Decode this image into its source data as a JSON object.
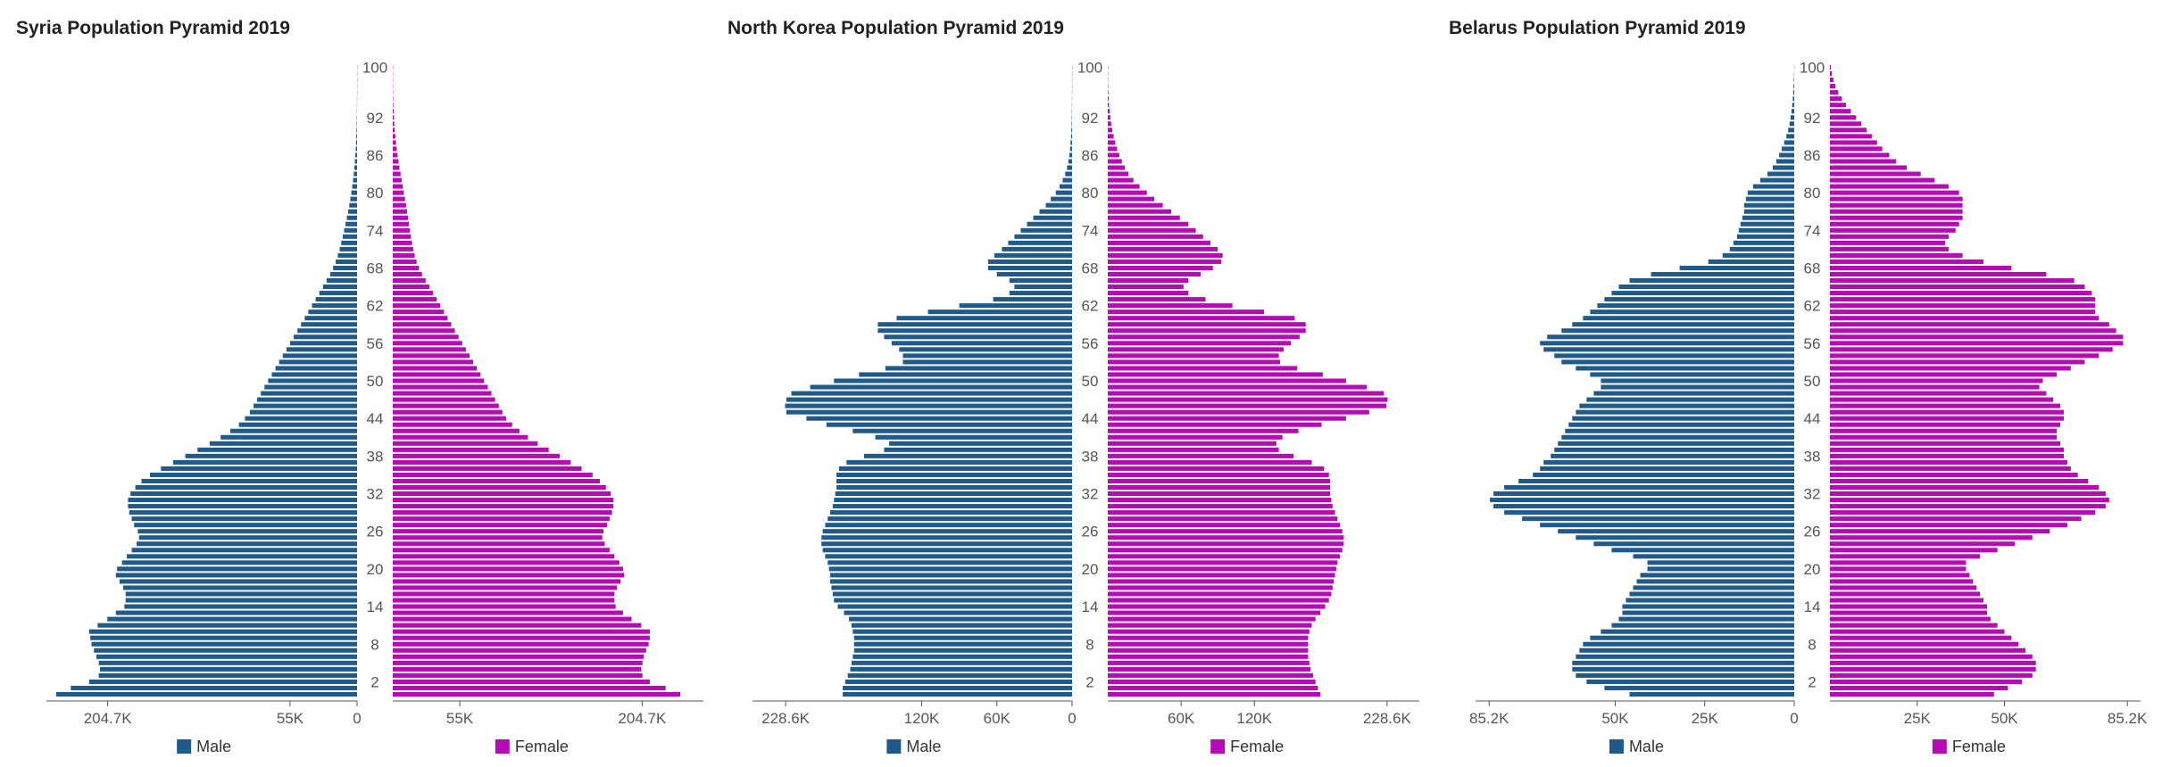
{
  "colors": {
    "male": "#1f5a8b",
    "female": "#b40bb4"
  },
  "chart_data": [
    {
      "type": "bar",
      "title": "Syria Population Pyramid 2019",
      "legend": {
        "male": "Male",
        "female": "Female",
        "placement": "bottom"
      },
      "age_ticks": [
        "2",
        "8",
        "14",
        "20",
        "26",
        "32",
        "38",
        "44",
        "50",
        "56",
        "62",
        "68",
        "74",
        "80",
        "86",
        "92",
        "100"
      ],
      "x_tick_labels": {
        "male": [
          "204.7K",
          "55K",
          "0"
        ],
        "female": [
          "55K",
          "204.7K"
        ]
      },
      "x_tick_values": {
        "male": [
          204700,
          55000,
          0
        ],
        "female": [
          55000,
          204700
        ]
      },
      "xlim": [
        0,
        255000
      ],
      "male": [
        247000,
        235000,
        220000,
        212000,
        211000,
        212000,
        214000,
        216000,
        218000,
        219000,
        220000,
        213000,
        205000,
        198000,
        191000,
        190000,
        190000,
        192000,
        195000,
        198000,
        197000,
        193000,
        189000,
        185000,
        181000,
        179000,
        180000,
        183000,
        185000,
        187000,
        188000,
        188000,
        186000,
        182000,
        177000,
        170000,
        161000,
        151000,
        141000,
        131000,
        121000,
        112000,
        104000,
        97000,
        92000,
        88000,
        85000,
        82000,
        79000,
        76000,
        73000,
        70000,
        67000,
        64000,
        61000,
        58000,
        55000,
        52000,
        49000,
        46000,
        43000,
        40000,
        37000,
        34000,
        31000,
        28000,
        25000,
        22000,
        19700,
        17500,
        15800,
        14300,
        13000,
        11800,
        10600,
        9500,
        8400,
        7400,
        6400,
        5500,
        4700,
        4000,
        3300,
        2700,
        2200,
        1800,
        1400,
        1100,
        850,
        650,
        500,
        380,
        280,
        200,
        140,
        100,
        70,
        45,
        30,
        20,
        10
      ],
      "female": [
        236000,
        224000,
        211000,
        205000,
        204000,
        205000,
        206000,
        208000,
        210000,
        211000,
        211000,
        204000,
        196000,
        189000,
        183000,
        182000,
        182000,
        184000,
        187000,
        190000,
        189000,
        186000,
        182000,
        178000,
        174000,
        172000,
        173000,
        176000,
        178000,
        180000,
        181000,
        181000,
        179000,
        175000,
        170000,
        164000,
        155000,
        146000,
        137000,
        128000,
        119000,
        111000,
        104000,
        98000,
        93000,
        90000,
        87000,
        84000,
        81000,
        78000,
        75000,
        72000,
        69000,
        66000,
        63000,
        60000,
        57000,
        54000,
        51000,
        48000,
        45000,
        42000,
        39000,
        36000,
        33000,
        30000,
        27000,
        24000,
        21500,
        19500,
        18000,
        16800,
        15800,
        14900,
        14100,
        13300,
        12500,
        11700,
        10900,
        10000,
        9100,
        8200,
        7300,
        6400,
        5500,
        4700,
        3900,
        3200,
        2600,
        2100,
        1600,
        1250,
        950,
        700,
        500,
        350,
        240,
        160,
        100,
        60,
        30
      ]
    },
    {
      "type": "bar",
      "title": "North Korea Population Pyramid 2019",
      "legend": {
        "male": "Male",
        "female": "Female",
        "placement": "bottom"
      },
      "age_ticks": [
        "2",
        "8",
        "14",
        "20",
        "26",
        "32",
        "38",
        "44",
        "50",
        "56",
        "62",
        "68",
        "74",
        "80",
        "86",
        "92",
        "100"
      ],
      "x_tick_labels": {
        "male": [
          "228.6K",
          "120K",
          "60K",
          "0"
        ],
        "female": [
          "60K",
          "120K",
          "228.6K"
        ]
      },
      "x_tick_values": {
        "male": [
          228600,
          120000,
          60000,
          0
        ],
        "female": [
          60000,
          120000,
          228600
        ]
      },
      "xlim": [
        0,
        255000
      ],
      "male": [
        183000,
        183000,
        181000,
        179000,
        177000,
        176000,
        175000,
        174000,
        174000,
        174000,
        175000,
        176000,
        178000,
        182000,
        187000,
        190000,
        191000,
        192000,
        193000,
        193000,
        194000,
        195000,
        197000,
        199000,
        200000,
        200000,
        199000,
        197000,
        195000,
        193000,
        191000,
        190000,
        189000,
        188000,
        188000,
        188000,
        186000,
        180000,
        166000,
        150000,
        146000,
        157000,
        175000,
        196000,
        212000,
        228000,
        229000,
        228000,
        224000,
        209000,
        190000,
        170000,
        149000,
        135000,
        135000,
        138000,
        144000,
        150000,
        155000,
        155000,
        140000,
        115000,
        90000,
        63000,
        50000,
        46000,
        50000,
        60000,
        67000,
        67000,
        62000,
        56000,
        51000,
        46000,
        41000,
        36000,
        31000,
        26000,
        21000,
        17000,
        13000,
        10000,
        7500,
        5500,
        4000,
        3000,
        2200,
        1600,
        1200,
        850,
        600,
        420,
        300,
        200,
        140,
        100,
        70,
        45,
        30,
        20,
        10
      ],
      "female": [
        174000,
        172000,
        170000,
        168000,
        166000,
        165000,
        164000,
        164000,
        164000,
        164000,
        165000,
        167000,
        170000,
        174000,
        178000,
        181000,
        183000,
        184000,
        185000,
        186000,
        187000,
        188000,
        190000,
        192000,
        193000,
        193000,
        192000,
        190000,
        188000,
        186000,
        184000,
        183000,
        182000,
        182000,
        182000,
        181000,
        177000,
        167000,
        152000,
        140000,
        138000,
        143000,
        156000,
        175000,
        195000,
        214000,
        228000,
        229000,
        226000,
        212000,
        195000,
        176000,
        155000,
        141000,
        140000,
        144000,
        150000,
        157000,
        162000,
        162000,
        153000,
        128000,
        102000,
        80000,
        66000,
        62000,
        66000,
        76000,
        86000,
        93000,
        94000,
        90000,
        84000,
        78000,
        72000,
        66000,
        59000,
        52000,
        45000,
        38000,
        32000,
        26000,
        21000,
        17000,
        14000,
        11500,
        9400,
        7600,
        6100,
        4800,
        3700,
        2800,
        2100,
        1500,
        1000,
        700,
        450,
        280,
        160,
        90,
        40
      ]
    },
    {
      "type": "bar",
      "title": "Belarus Population Pyramid 2019",
      "legend": {
        "male": "Male",
        "female": "Female",
        "placement": "bottom"
      },
      "age_ticks": [
        "2",
        "8",
        "14",
        "20",
        "26",
        "32",
        "38",
        "44",
        "50",
        "56",
        "62",
        "68",
        "74",
        "80",
        "86",
        "92",
        "100"
      ],
      "x_tick_labels": {
        "male": [
          "85.2K",
          "50K",
          "25K",
          "0"
        ],
        "female": [
          "25K",
          "50K",
          "85.2K"
        ]
      },
      "x_tick_values": {
        "male": [
          85200,
          50000,
          25000,
          0
        ],
        "female": [
          25000,
          50000,
          85200
        ]
      },
      "xlim": [
        0,
        89000
      ],
      "male": [
        46000,
        53000,
        58000,
        61000,
        62000,
        62000,
        61000,
        60000,
        59000,
        57000,
        54000,
        51000,
        49000,
        48000,
        48000,
        47000,
        46000,
        45000,
        44000,
        43000,
        41000,
        41000,
        45000,
        51000,
        56000,
        61000,
        66000,
        71000,
        76000,
        81000,
        84000,
        85000,
        84000,
        81000,
        77000,
        73000,
        71000,
        70000,
        68000,
        67000,
        66000,
        65000,
        64000,
        63000,
        62000,
        61000,
        60000,
        58000,
        56000,
        54000,
        54000,
        57000,
        61000,
        65000,
        67000,
        70000,
        71000,
        69000,
        65000,
        62000,
        59000,
        57000,
        55000,
        53000,
        51000,
        49000,
        46000,
        40000,
        32000,
        24000,
        20000,
        18000,
        17000,
        16000,
        15500,
        15000,
        14500,
        14000,
        14000,
        13500,
        13000,
        11500,
        9500,
        7500,
        6000,
        5000,
        4200,
        3500,
        2800,
        2200,
        1700,
        1300,
        1000,
        750,
        550,
        400,
        280,
        190,
        120,
        70,
        30
      ],
      "female": [
        47000,
        51000,
        55000,
        58000,
        59000,
        59000,
        58000,
        56000,
        54000,
        52000,
        50000,
        48000,
        46000,
        45000,
        45000,
        44000,
        43000,
        42000,
        41000,
        40000,
        39000,
        39000,
        43000,
        48000,
        53000,
        58000,
        63000,
        68000,
        72000,
        76000,
        79000,
        80000,
        79000,
        77000,
        74000,
        71000,
        69000,
        68000,
        67000,
        67000,
        66000,
        65000,
        65000,
        66000,
        67000,
        67000,
        66000,
        64000,
        62000,
        60000,
        61000,
        65000,
        69000,
        73000,
        77000,
        81000,
        84000,
        84000,
        82000,
        80000,
        77000,
        76000,
        76000,
        76000,
        75000,
        73000,
        70000,
        62000,
        52000,
        44000,
        38000,
        34000,
        33000,
        34000,
        36000,
        37000,
        38000,
        38000,
        38000,
        38000,
        37000,
        34000,
        30000,
        26000,
        22000,
        19000,
        17000,
        15000,
        13500,
        12000,
        10500,
        9000,
        7500,
        6000,
        4600,
        3400,
        2400,
        1600,
        1000,
        550,
        250
      ]
    }
  ]
}
